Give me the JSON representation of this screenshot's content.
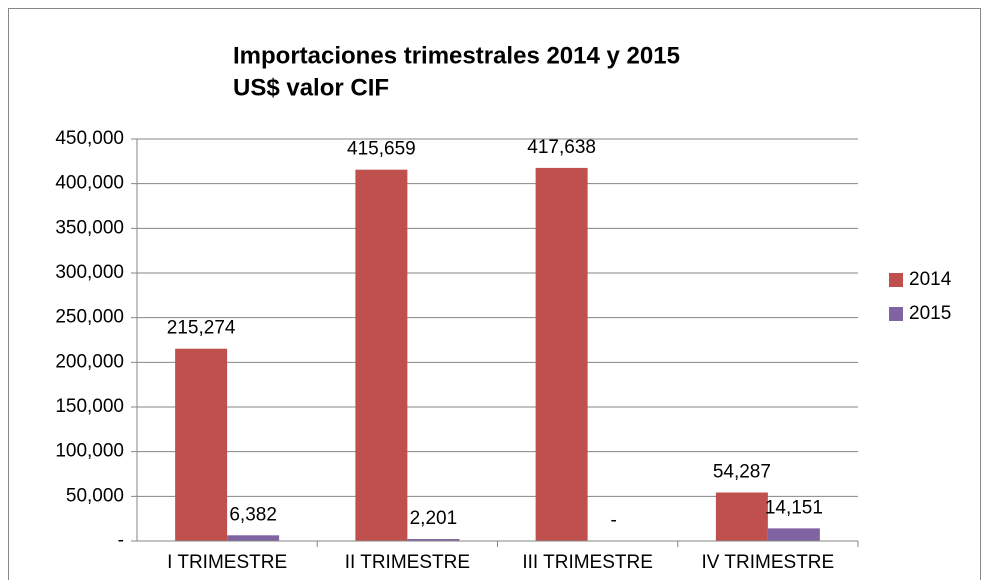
{
  "chart_data": {
    "type": "bar",
    "title": "Importaciones trimestrales 2014 y 2015",
    "subtitle": "US$ valor CIF",
    "categories": [
      "I TRIMESTRE",
      "II TRIMESTRE",
      "III TRIMESTRE",
      "IV TRIMESTRE"
    ],
    "series": [
      {
        "name": "2014",
        "color": "#c0504d",
        "values": [
          215274,
          415659,
          417638,
          54287
        ],
        "value_labels": [
          "215,274",
          "415,659",
          "417,638",
          "54,287"
        ]
      },
      {
        "name": "2015",
        "color": "#8064a2",
        "values": [
          6382,
          2201,
          0,
          14151
        ],
        "value_labels": [
          "6,382",
          "2,201",
          "-",
          "14,151"
        ]
      }
    ],
    "ylim": [
      0,
      450000
    ],
    "yticks": [
      {
        "value": 0,
        "label": "-"
      },
      {
        "value": 50000,
        "label": "50,000"
      },
      {
        "value": 100000,
        "label": "100,000"
      },
      {
        "value": 150000,
        "label": "150,000"
      },
      {
        "value": 200000,
        "label": "200,000"
      },
      {
        "value": 250000,
        "label": "250,000"
      },
      {
        "value": 300000,
        "label": "300,000"
      },
      {
        "value": 350000,
        "label": "350,000"
      },
      {
        "value": 400000,
        "label": "400,000"
      },
      {
        "value": 450000,
        "label": "450,000"
      }
    ],
    "grid": true,
    "legend": "right"
  }
}
